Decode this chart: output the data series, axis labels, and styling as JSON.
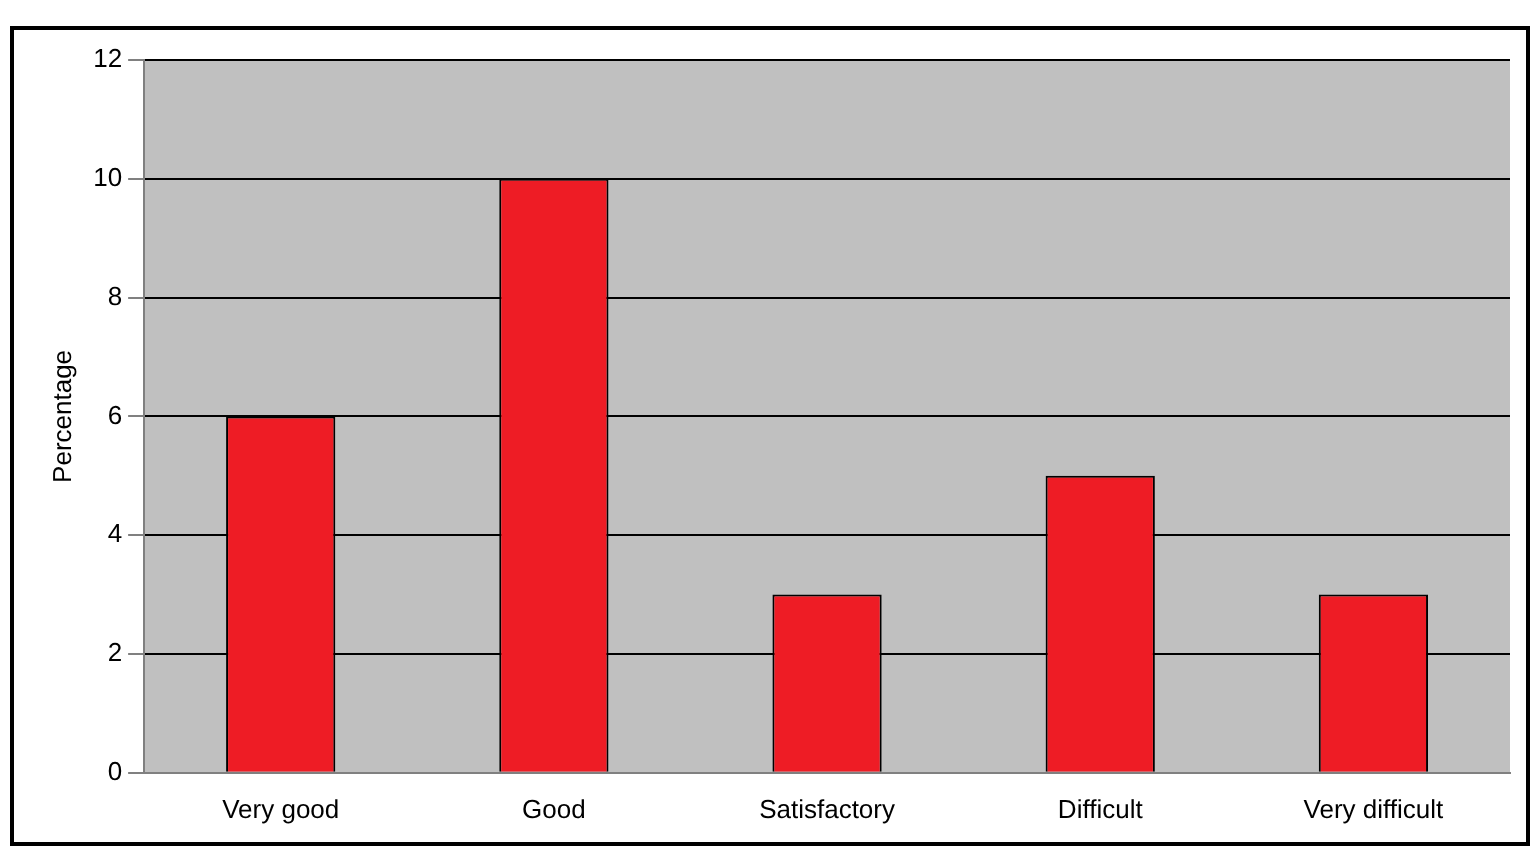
{
  "chart_data": {
    "type": "bar",
    "ylabel": "Percentage",
    "categories": [
      "Very good",
      "Good",
      "Satisfactory",
      "Difficult",
      "Very difficult"
    ],
    "values": [
      6,
      10,
      3,
      5,
      3
    ],
    "color": "#ee1c25",
    "ylim": [
      0,
      12
    ],
    "yticks": [
      0,
      2,
      4,
      6,
      8,
      10,
      12
    ],
    "grid": "y"
  }
}
